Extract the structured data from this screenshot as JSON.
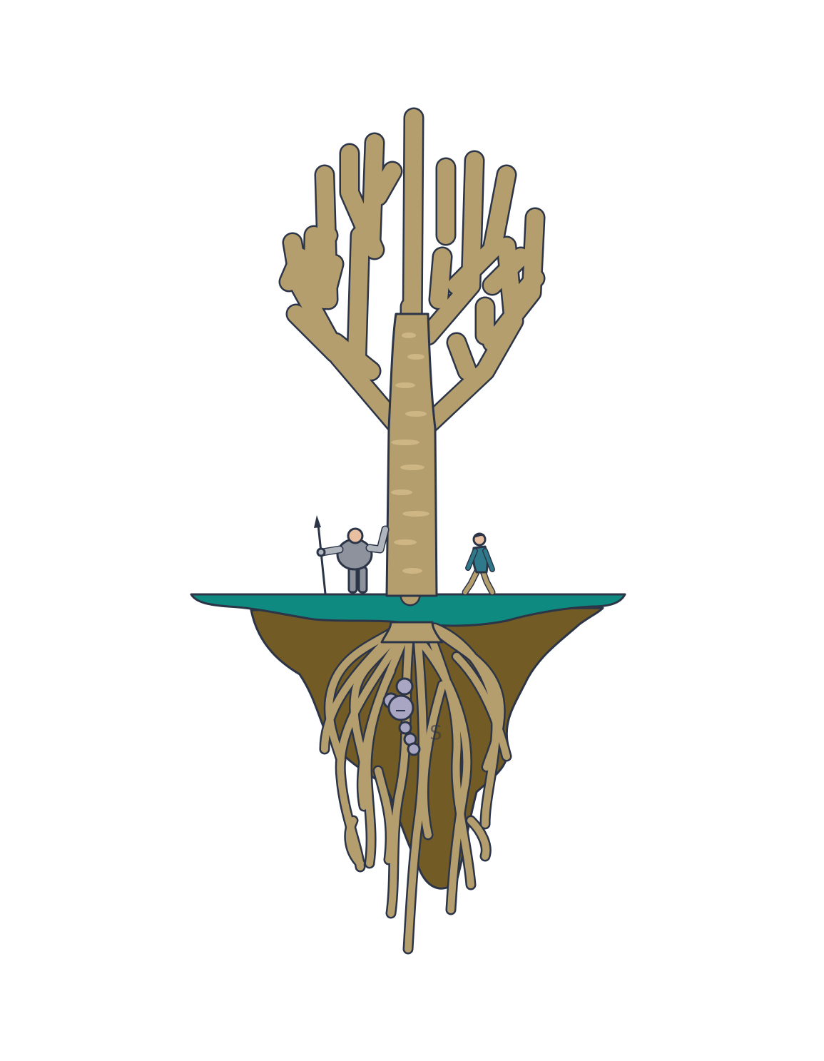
{
  "scene": {
    "colors": {
      "background": "#ffffff",
      "outline": "#2c3547",
      "wood": "#b59e6d",
      "wood_highlight": "#d3bb88",
      "grass": "#0f8a80",
      "soil": "#735b25",
      "soil_dark": "#5d4a1e",
      "armor": "#8e929c",
      "armor_light": "#b0b4bd",
      "skin": "#e8bfa0",
      "jacket": "#2f7a8a",
      "trousers": "#b59e6d",
      "hair": "#2c3547",
      "buried_figure": "#a9a6c4"
    },
    "elements": {
      "tree": "bare-tree-icon",
      "island": "floating-island-icon",
      "roots": "tree-roots-icon",
      "knight": "armored-knight-with-spear-icon",
      "walker": "walking-man-icon",
      "buried": "buried-figure-in-roots-icon"
    },
    "root_letter": "S"
  }
}
